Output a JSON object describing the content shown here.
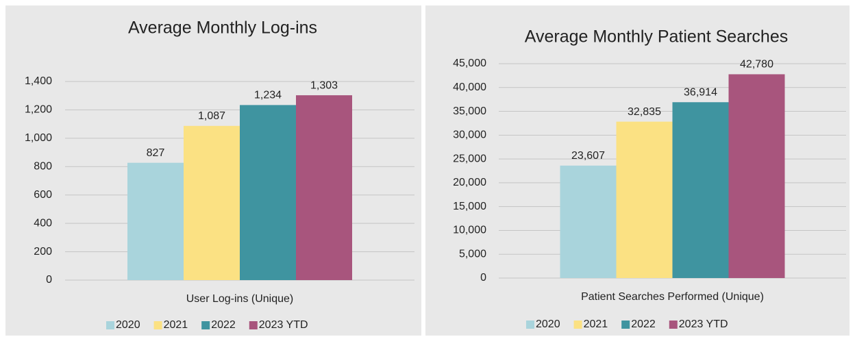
{
  "chart_data": [
    {
      "type": "bar",
      "title": "Average Monthly Log-ins",
      "categories": [
        "User Log-ins (Unique)"
      ],
      "series": [
        {
          "name": "2020",
          "color": "#a9d4dc",
          "values": [
            827
          ]
        },
        {
          "name": "2021",
          "color": "#fbe183",
          "values": [
            1087
          ],
          "value_labels": [
            "1,087"
          ]
        },
        {
          "name": "2022",
          "color": "#3f94a0",
          "values": [
            1234
          ],
          "value_labels": [
            "1,234"
          ]
        },
        {
          "name": "2023 YTD",
          "color": "#a8557d",
          "values": [
            1303
          ],
          "value_labels": [
            "1,303"
          ]
        }
      ],
      "ylim": [
        0,
        1400
      ],
      "yticks": [
        0,
        200,
        400,
        600,
        800,
        {
          "value": 1000,
          "label": "1,000"
        },
        {
          "value": 1200,
          "label": "1,200"
        },
        {
          "value": 1400,
          "label": "1,400"
        }
      ],
      "grid": true,
      "legend": "bottom"
    },
    {
      "type": "bar",
      "title": "Average Monthly Patient Searches",
      "categories": [
        "Patient Searches Performed (Unique)"
      ],
      "series": [
        {
          "name": "2020",
          "color": "#a9d4dc",
          "values": [
            23607
          ],
          "value_labels": [
            "23,607"
          ]
        },
        {
          "name": "2021",
          "color": "#fbe183",
          "values": [
            32835
          ],
          "value_labels": [
            "32,835"
          ]
        },
        {
          "name": "2022",
          "color": "#3f94a0",
          "values": [
            36914
          ],
          "value_labels": [
            "36,914"
          ]
        },
        {
          "name": "2023 YTD",
          "color": "#a8557d",
          "values": [
            42780
          ],
          "value_labels": [
            "42,780"
          ]
        }
      ],
      "ylim": [
        0,
        45000
      ],
      "yticks": [
        0,
        {
          "value": 5000,
          "label": "5,000"
        },
        {
          "value": 10000,
          "label": "10,000"
        },
        {
          "value": 15000,
          "label": "15,000"
        },
        {
          "value": 20000,
          "label": "20,000"
        },
        {
          "value": 25000,
          "label": "25,000"
        },
        {
          "value": 30000,
          "label": "30,000"
        },
        {
          "value": 35000,
          "label": "35,000"
        },
        {
          "value": 40000,
          "label": "40,000"
        },
        {
          "value": 45000,
          "label": "45,000"
        }
      ],
      "grid": true,
      "legend": "bottom"
    }
  ]
}
